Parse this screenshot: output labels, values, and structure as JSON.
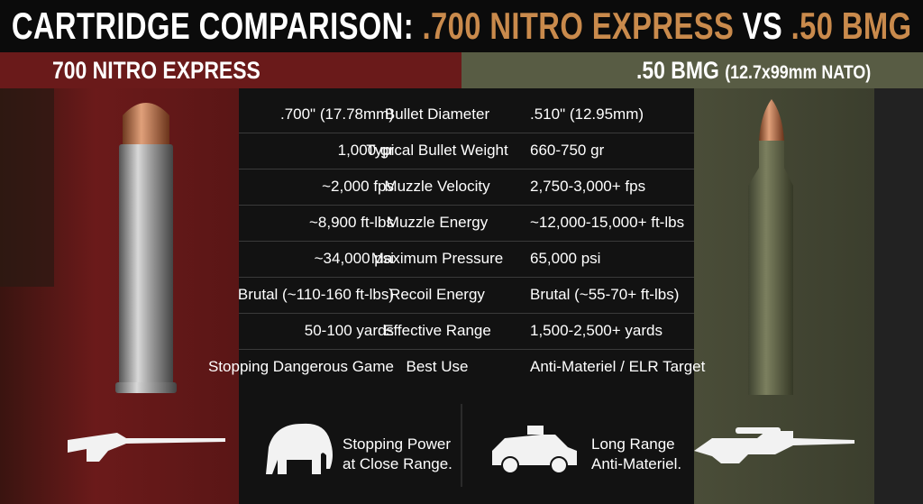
{
  "title": {
    "lead": "CARTRIDGE COMPARISON:",
    "left": ".700 NITRO EXPRESS",
    "vs": "VS",
    "right": ".50 BMG"
  },
  "left_header": {
    "name": "700 NITRO EXPRESS"
  },
  "right_header": {
    "name": ".50 BMG",
    "note": "(12.7x99mm NATO)"
  },
  "table": {
    "rows": [
      [
        ".700\" (17.78mm)",
        "Bullet Diameter",
        ".510\" (12.95mm)"
      ],
      [
        "1,000 gr",
        "Typical Bullet Weight",
        "660-750 gr"
      ],
      [
        "~2,000 fps",
        "Muzzle Velocity",
        "2,750-3,000+ fps"
      ],
      [
        "~8,900 ft-lbs",
        "Muzzle Energy",
        "~12,000-15,000+ ft-lbs"
      ],
      [
        "~34,000 psi",
        "Maximum Pressure",
        "65,000 psi"
      ],
      [
        "Brutal (~110-160 ft-lbs)",
        "Recoil Energy",
        "Brutal (~55-70+ ft-lbs)"
      ],
      [
        "50-100 yards",
        "Effective Range",
        "1,500-2,500+ yards"
      ],
      [
        "Stopping Dangerous Game",
        "Best Use",
        "Anti-Materiel / ELR Target"
      ]
    ]
  },
  "footer": {
    "left_caption": [
      "Stopping Power",
      "at Close Range."
    ],
    "right_caption": [
      "Long Range",
      "Anti-Materiel."
    ]
  }
}
